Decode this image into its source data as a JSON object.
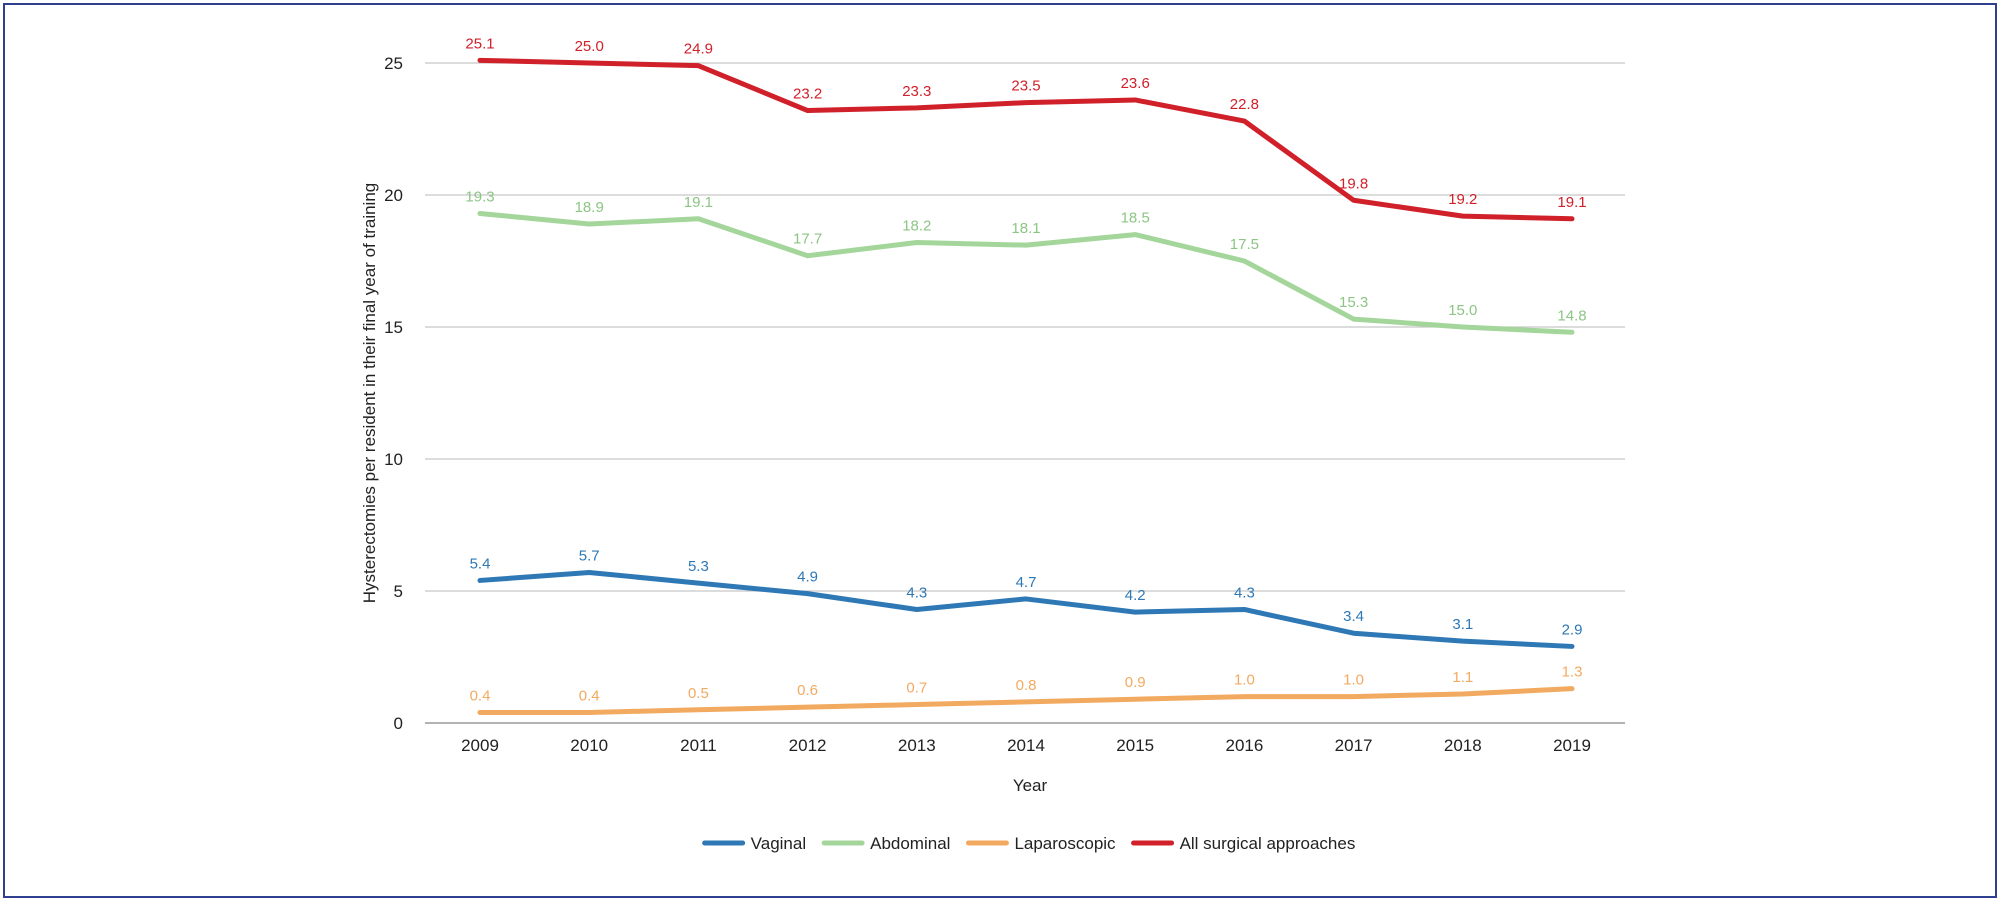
{
  "chart_data": {
    "type": "line",
    "title": "",
    "xlabel": "Year",
    "ylabel": "Hysterectomies per resident in their final year of training",
    "x": [
      "2009",
      "2010",
      "2011",
      "2012",
      "2013",
      "2014",
      "2015",
      "2016",
      "2017",
      "2018",
      "2019"
    ],
    "ylim": [
      0,
      25
    ],
    "yticks": [
      "0",
      "5",
      "10",
      "15",
      "20",
      "25"
    ],
    "grid": "horizontal",
    "legend": "bottom-center",
    "series": [
      {
        "name": "Vaginal",
        "color": "#2e78b5",
        "values": [
          5.4,
          5.7,
          5.3,
          4.9,
          4.3,
          4.7,
          4.2,
          4.3,
          3.4,
          3.1,
          2.9
        ],
        "labels": [
          "5.4",
          "5.7",
          "5.3",
          "4.9",
          "4.3",
          "4.7",
          "4.2",
          "4.3",
          "3.4",
          "3.1",
          "2.9"
        ]
      },
      {
        "name": "Abdominal",
        "color": "#a4d69b",
        "values": [
          19.3,
          18.9,
          19.1,
          17.7,
          18.2,
          18.1,
          18.5,
          17.5,
          15.3,
          15.0,
          14.8
        ],
        "labels": [
          "19.3",
          "18.9",
          "19.1",
          "17.7",
          "18.2",
          "18.1",
          "18.5",
          "17.5",
          "15.3",
          "15.0",
          "14.8"
        ]
      },
      {
        "name": "Laparoscopic",
        "color": "#f2aa60",
        "values": [
          0.4,
          0.4,
          0.5,
          0.6,
          0.7,
          0.8,
          0.9,
          1.0,
          1.0,
          1.1,
          1.3
        ],
        "labels": [
          "0.4",
          "0.4",
          "0.5",
          "0.6",
          "0.7",
          "0.8",
          "0.9",
          "1.0",
          "1.0",
          "1.1",
          "1.3"
        ]
      },
      {
        "name": "All surgical approaches",
        "color": "#d0202a",
        "values": [
          25.1,
          25.0,
          24.9,
          23.2,
          23.3,
          23.5,
          23.6,
          22.8,
          19.8,
          19.2,
          19.1
        ],
        "labels": [
          "25.1",
          "25.0",
          "24.9",
          "23.2",
          "23.3",
          "23.5",
          "23.6",
          "22.8",
          "19.8",
          "19.2",
          "19.1"
        ]
      }
    ]
  }
}
